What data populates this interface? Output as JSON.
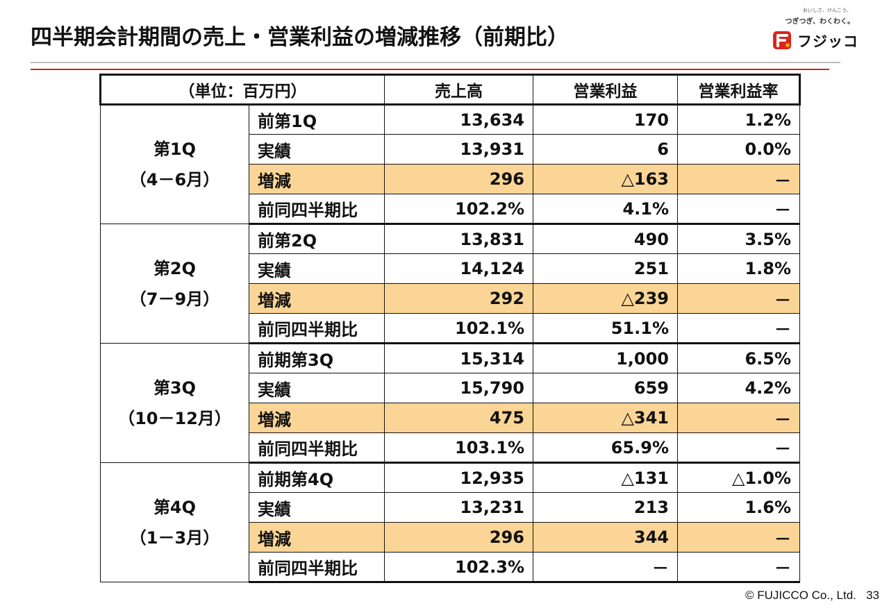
{
  "title": "四半期会計期間の売上・営業利益の増減推移（前期比）",
  "logo": {
    "tagline_small": "おいしさ、けんこう、",
    "tagline": "つぎつぎ、わくわく。",
    "brand": "フジッコ"
  },
  "table": {
    "headers": {
      "unit": "（単位：百万円）",
      "sales": "売上高",
      "op_profit": "営業利益",
      "op_margin": "営業利益率"
    },
    "quarters": [
      {
        "name": "第1Q",
        "range": "（4－6月）",
        "rows": [
          {
            "label": "前第1Q",
            "sales": "13,634",
            "profit": "170",
            "margin": "1.2%"
          },
          {
            "label": "実績",
            "sales": "13,931",
            "profit": "6",
            "margin": "0.0%"
          },
          {
            "label": "増減",
            "sales": "296",
            "profit": "△163",
            "margin": "－"
          },
          {
            "label": "前同四半期比",
            "sales": "102.2%",
            "profit": "4.1%",
            "margin": "－"
          }
        ]
      },
      {
        "name": "第2Q",
        "range": "（7－9月）",
        "rows": [
          {
            "label": "前第2Q",
            "sales": "13,831",
            "profit": "490",
            "margin": "3.5%"
          },
          {
            "label": "実績",
            "sales": "14,124",
            "profit": "251",
            "margin": "1.8%"
          },
          {
            "label": "増減",
            "sales": "292",
            "profit": "△239",
            "margin": "－"
          },
          {
            "label": "前同四半期比",
            "sales": "102.1%",
            "profit": "51.1%",
            "margin": "－"
          }
        ]
      },
      {
        "name": "第3Q",
        "range": "（10－12月）",
        "rows": [
          {
            "label": "前期第3Q",
            "sales": "15,314",
            "profit": "1,000",
            "margin": "6.5%"
          },
          {
            "label": "実績",
            "sales": "15,790",
            "profit": "659",
            "margin": "4.2%"
          },
          {
            "label": "増減",
            "sales": "475",
            "profit": "△341",
            "margin": "－"
          },
          {
            "label": "前同四半期比",
            "sales": "103.1%",
            "profit": "65.9%",
            "margin": "－"
          }
        ]
      },
      {
        "name": "第4Q",
        "range": "（1－3月）",
        "rows": [
          {
            "label": "前期第4Q",
            "sales": "12,935",
            "profit": "△131",
            "margin": "△1.0%"
          },
          {
            "label": "実績",
            "sales": "13,231",
            "profit": "213",
            "margin": "1.6%"
          },
          {
            "label": "増減",
            "sales": "296",
            "profit": "344",
            "margin": "－"
          },
          {
            "label": "前同四半期比",
            "sales": "102.3%",
            "profit": "－",
            "margin": "－"
          }
        ]
      }
    ]
  },
  "footer": {
    "copyright": "© FUJICCO Co., Ltd.",
    "page_number": "33"
  },
  "colors": {
    "highlight_row": "#fbd596",
    "accent_rule": "#c8271f",
    "brand_red": "#d9261c"
  },
  "icons": {
    "logo_mark": "fujicco-logo-mark"
  }
}
